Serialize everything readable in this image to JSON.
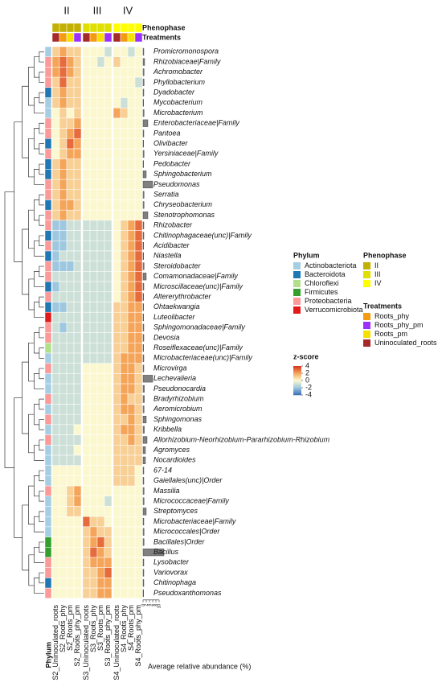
{
  "chart_data": {
    "type": "heatmap",
    "rows": [
      "Promicromonospora",
      "Rhizobiaceae|Family",
      "Achromobacter",
      "Phyllobacterium",
      "Dyadobacter",
      "Mycobacterium",
      "Microbacterium",
      "Enterobacteriaceae|Family",
      "Pantoea",
      "Olivibacter",
      "Yersiniaceae|Family",
      "Pedobacter",
      "Sphingobacterium",
      "Pseudomonas",
      "Serratia",
      "Chryseobacterium",
      "Stenotrophomonas",
      "Rhizobacter",
      "Chitinophagaceae(unc)|Family",
      "Acidibacter",
      "Niastella",
      "Steroidobacter",
      "Comamonadaceae|Family",
      "Microscillaceae(unc)|Family",
      "Altererythrobacter",
      "Ohtaekwangia",
      "Luteolibacter",
      "Sphingomonadaceae|Family",
      "Devosia",
      "Roseiflexaceae(unc)|Family",
      "Microbacteriaceae(unc)|Family",
      "Microvirga",
      "Lechevalieria",
      "Pseudonocardia",
      "Bradyrhizobium",
      "Aeromicrobium",
      "Sphingomonas",
      "Kribbella",
      "Allorhizobium-Neorhizobium-Pararhizobium-Rhizobium",
      "Agromyces",
      "Nocardioides",
      "67-14",
      "Gaiellales(unc)|Order",
      "Massilia",
      "Micrococcaceae|Family",
      "Streptomyces",
      "Microbacteriaceae|Family",
      "Micrococcales|Order",
      "Bacillales|Order",
      "Bacillus",
      "Lysobacter",
      "Variovorax",
      "Chitinophaga",
      "Pseudoxanthomonas"
    ],
    "columns": [
      "S2_Uninoculated_roots",
      "S2_Roots_phy",
      "S2_Roots_pm",
      "S2_Roots_phy_pm",
      "S3_Uninoculated_roots",
      "S3_Roots_phy",
      "S3_Roots_pm",
      "S3_Roots_phy_pm",
      "S4_Uninoculated_roots",
      "S4_Roots_phy",
      "S4_Roots_pm",
      "S4_Roots_phy_pm"
    ],
    "column_groups": [
      "II",
      "III",
      "IV"
    ],
    "row_axis_label": "Phylum",
    "values": [
      [
        1,
        2,
        1,
        1,
        0,
        0,
        0,
        -1,
        0,
        0,
        -1,
        0
      ],
      [
        2,
        3,
        2,
        1,
        0,
        0,
        -1,
        0,
        1,
        0,
        0,
        0
      ],
      [
        2,
        3,
        2,
        1,
        0,
        0,
        0,
        0,
        0,
        0,
        0,
        0
      ],
      [
        1,
        3,
        1,
        1,
        0,
        0,
        0,
        0,
        0,
        0,
        0,
        -1
      ],
      [
        1,
        2,
        1,
        1,
        0,
        0,
        0,
        0,
        0,
        0,
        0,
        0
      ],
      [
        1,
        2,
        1,
        1,
        0,
        0,
        0,
        0,
        0,
        -1,
        0,
        0
      ],
      [
        0,
        1,
        0,
        1,
        0,
        0,
        0,
        0,
        2,
        1,
        0,
        0
      ],
      [
        0,
        1,
        1,
        2,
        0,
        0,
        0,
        0,
        0,
        0,
        0,
        0
      ],
      [
        0,
        1,
        2,
        3,
        0,
        0,
        0,
        0,
        0,
        0,
        0,
        0
      ],
      [
        0,
        1,
        3,
        2,
        0,
        0,
        0,
        0,
        0,
        0,
        0,
        0
      ],
      [
        0,
        1,
        2,
        2,
        0,
        0,
        0,
        0,
        0,
        0,
        0,
        0
      ],
      [
        1,
        2,
        1,
        1,
        0,
        0,
        0,
        0,
        0,
        0,
        0,
        0
      ],
      [
        1,
        2,
        1,
        1,
        0,
        0,
        0,
        0,
        0,
        0,
        0,
        0
      ],
      [
        1,
        2,
        1,
        1,
        0,
        0,
        0,
        0,
        0,
        0,
        0,
        0
      ],
      [
        1,
        2,
        1,
        1,
        0,
        0,
        0,
        0,
        0,
        0,
        0,
        0
      ],
      [
        1,
        2,
        2,
        1,
        0,
        0,
        0,
        0,
        0,
        0,
        0,
        0
      ],
      [
        1,
        2,
        1,
        1,
        0,
        0,
        0,
        0,
        0,
        0,
        0,
        0
      ],
      [
        -2,
        -2,
        -1,
        -1,
        -1,
        -1,
        -1,
        -1,
        0,
        1,
        2,
        3
      ],
      [
        -2,
        -2,
        -1,
        -1,
        -1,
        -1,
        -1,
        -1,
        0,
        1,
        2,
        3
      ],
      [
        -2,
        -2,
        -1,
        -1,
        -1,
        -1,
        -1,
        -1,
        0,
        1,
        2,
        3
      ],
      [
        -2,
        -1,
        -1,
        -1,
        -1,
        -1,
        -1,
        -1,
        0,
        1,
        2,
        3
      ],
      [
        -2,
        -2,
        -2,
        -1,
        -1,
        -1,
        -1,
        -1,
        0,
        1,
        2,
        3
      ],
      [
        -1,
        -1,
        -1,
        -1,
        -1,
        -1,
        -1,
        -1,
        0,
        1,
        2,
        3
      ],
      [
        -2,
        -1,
        -1,
        -1,
        -1,
        -1,
        -1,
        -1,
        0,
        1,
        2,
        3
      ],
      [
        -1,
        -1,
        -1,
        -1,
        -1,
        -1,
        -1,
        -1,
        0,
        1,
        2,
        3
      ],
      [
        -2,
        -2,
        -1,
        -1,
        -1,
        -1,
        -1,
        -1,
        1,
        1,
        2,
        2
      ],
      [
        -1,
        -1,
        -1,
        -1,
        -1,
        -1,
        -1,
        -1,
        1,
        1,
        2,
        2
      ],
      [
        -1,
        -2,
        -1,
        -1,
        -1,
        -1,
        -1,
        -1,
        1,
        1,
        2,
        2
      ],
      [
        -1,
        -1,
        -1,
        -1,
        -1,
        -1,
        -1,
        -1,
        1,
        1,
        2,
        2
      ],
      [
        -1,
        -1,
        -1,
        -1,
        -1,
        -1,
        -1,
        -1,
        1,
        1,
        2,
        2
      ],
      [
        -1,
        -1,
        -1,
        -1,
        -1,
        -1,
        -1,
        -1,
        1,
        2,
        2,
        2
      ],
      [
        -1,
        -1,
        -1,
        -1,
        0,
        0,
        0,
        0,
        1,
        2,
        2,
        1
      ],
      [
        -1,
        -1,
        -1,
        -1,
        0,
        0,
        0,
        0,
        1,
        2,
        2,
        1
      ],
      [
        -1,
        -1,
        -1,
        -1,
        0,
        0,
        0,
        0,
        1,
        2,
        2,
        1
      ],
      [
        -1,
        -1,
        -1,
        -1,
        0,
        0,
        0,
        0,
        1,
        2,
        1,
        1
      ],
      [
        -1,
        -1,
        -1,
        -1,
        0,
        0,
        0,
        0,
        1,
        2,
        2,
        1
      ],
      [
        -1,
        -1,
        -1,
        -1,
        0,
        0,
        0,
        0,
        1,
        1,
        2,
        1
      ],
      [
        -1,
        -1,
        -1,
        0,
        0,
        0,
        0,
        0,
        1,
        2,
        2,
        1
      ],
      [
        -1,
        -1,
        -1,
        -1,
        0,
        0,
        0,
        0,
        1,
        1,
        2,
        1
      ],
      [
        -1,
        -1,
        -1,
        0,
        0,
        0,
        0,
        0,
        1,
        1,
        1,
        1
      ],
      [
        -1,
        -1,
        -1,
        -1,
        0,
        0,
        0,
        0,
        1,
        1,
        1,
        1
      ],
      [
        0,
        0,
        0,
        0,
        0,
        0,
        0,
        0,
        1,
        1,
        1,
        0
      ],
      [
        0,
        0,
        0,
        0,
        0,
        0,
        0,
        0,
        1,
        1,
        1,
        0
      ],
      [
        0,
        0,
        1,
        2,
        0,
        0,
        0,
        0,
        0,
        0,
        0,
        0
      ],
      [
        0,
        0,
        1,
        2,
        0,
        0,
        0,
        -1,
        0,
        0,
        0,
        0
      ],
      [
        0,
        0,
        1,
        1,
        0,
        0,
        0,
        0,
        0,
        0,
        0,
        0
      ],
      [
        0,
        0,
        0,
        0,
        3,
        1,
        1,
        0,
        0,
        0,
        0,
        0
      ],
      [
        0,
        0,
        0,
        0,
        1,
        2,
        1,
        1,
        0,
        0,
        0,
        0
      ],
      [
        0,
        0,
        0,
        0,
        1,
        2,
        3,
        1,
        0,
        0,
        0,
        0
      ],
      [
        0,
        0,
        0,
        0,
        1,
        3,
        2,
        1,
        0,
        0,
        0,
        0
      ],
      [
        0,
        0,
        0,
        0,
        1,
        2,
        2,
        2,
        0,
        0,
        0,
        0
      ],
      [
        0,
        0,
        0,
        0,
        1,
        1,
        2,
        3,
        0,
        0,
        0,
        0
      ],
      [
        0,
        0,
        0,
        0,
        1,
        1,
        2,
        2,
        0,
        0,
        0,
        0
      ],
      [
        0,
        0,
        0,
        0,
        1,
        1,
        2,
        2,
        0,
        0,
        0,
        0
      ]
    ],
    "row_phylum": [
      "Actinobacteriota",
      "Proteobacteria",
      "Proteobacteria",
      "Proteobacteria",
      "Bacteroidota",
      "Actinobacteriota",
      "Actinobacteriota",
      "Proteobacteria",
      "Proteobacteria",
      "Bacteroidota",
      "Proteobacteria",
      "Bacteroidota",
      "Bacteroidota",
      "Proteobacteria",
      "Proteobacteria",
      "Bacteroidota",
      "Proteobacteria",
      "Proteobacteria",
      "Bacteroidota",
      "Proteobacteria",
      "Bacteroidota",
      "Proteobacteria",
      "Proteobacteria",
      "Bacteroidota",
      "Proteobacteria",
      "Bacteroidota",
      "Verrucomicrobiota",
      "Proteobacteria",
      "Proteobacteria",
      "Chloroflexi",
      "Actinobacteriota",
      "Proteobacteria",
      "Actinobacteriota",
      "Actinobacteriota",
      "Proteobacteria",
      "Actinobacteriota",
      "Proteobacteria",
      "Actinobacteriota",
      "Proteobacteria",
      "Actinobacteriota",
      "Actinobacteriota",
      "Actinobacteriota",
      "Actinobacteriota",
      "Proteobacteria",
      "Actinobacteriota",
      "Actinobacteriota",
      "Actinobacteriota",
      "Actinobacteriota",
      "Firmicutes",
      "Firmicutes",
      "Proteobacteria",
      "Proteobacteria",
      "Bacteroidota",
      "Proteobacteria"
    ],
    "abundance": [
      0.5,
      1,
      0.6,
      0.6,
      0.5,
      0.4,
      0.6,
      3,
      0.5,
      0.4,
      0.6,
      0.4,
      2,
      6,
      0.6,
      0.6,
      3,
      0.5,
      0.5,
      0.4,
      0.4,
      0.6,
      2,
      0.5,
      0.4,
      0.4,
      0.4,
      0.5,
      0.5,
      0.4,
      0.5,
      0.5,
      6,
      0.8,
      0.8,
      0.6,
      2,
      0.8,
      2.5,
      1.5,
      1.5,
      0.5,
      0.5,
      0.6,
      0.6,
      2,
      0.5,
      0.6,
      0.6,
      13,
      0.5,
      0.5,
      0.5,
      0.4
    ],
    "abundance_xlim": [
      0,
      10
    ],
    "abundance_xticks": [
      0,
      2,
      4,
      6,
      8,
      10
    ],
    "abundance_label": "Average relative abundance (%)",
    "column_phenophase": [
      "II",
      "II",
      "II",
      "II",
      "III",
      "III",
      "III",
      "III",
      "IV",
      "IV",
      "IV",
      "IV"
    ],
    "column_treatment": [
      "Uninoculated_roots",
      "Roots_phy",
      "Roots_pm",
      "Roots_phy_pm",
      "Uninoculated_roots",
      "Roots_phy",
      "Roots_pm",
      "Roots_phy_pm",
      "Uninoculated_roots",
      "Roots_phy",
      "Roots_pm",
      "Roots_phy_pm"
    ],
    "legend_phylum": {
      "title": "Phylum",
      "items": [
        {
          "name": "Actinobacteriota",
          "color": "#a6cee3"
        },
        {
          "name": "Bacteroidota",
          "color": "#1f78b4"
        },
        {
          "name": "Chloroflexi",
          "color": "#b2df8a"
        },
        {
          "name": "Firmicutes",
          "color": "#33a02c"
        },
        {
          "name": "Proteobacteria",
          "color": "#fb9a99"
        },
        {
          "name": "Verrucomicrobiota",
          "color": "#e31a1c"
        }
      ]
    },
    "legend_phenophase": {
      "title": "Phenophase",
      "items": [
        {
          "name": "II",
          "color": "#c4b000"
        },
        {
          "name": "III",
          "color": "#e0e000"
        },
        {
          "name": "IV",
          "color": "#ffff00"
        }
      ]
    },
    "legend_treatments": {
      "title": "Treatments",
      "items": [
        {
          "name": "Roots_phy",
          "color": "#f39c12"
        },
        {
          "name": "Roots_phy_pm",
          "color": "#9b30ff"
        },
        {
          "name": "Roots_pm",
          "color": "#f5e000"
        },
        {
          "name": "Uninoculated_roots",
          "color": "#a52a2a"
        }
      ]
    },
    "zscore": {
      "title": "z-score",
      "lim": [
        -4,
        4
      ],
      "ticks": [
        4,
        2,
        0,
        -2,
        -4
      ],
      "colors": [
        "#3b6fb6",
        "#9ec8e0",
        "#fbf8cf",
        "#f5a55a",
        "#d7301f"
      ]
    }
  }
}
